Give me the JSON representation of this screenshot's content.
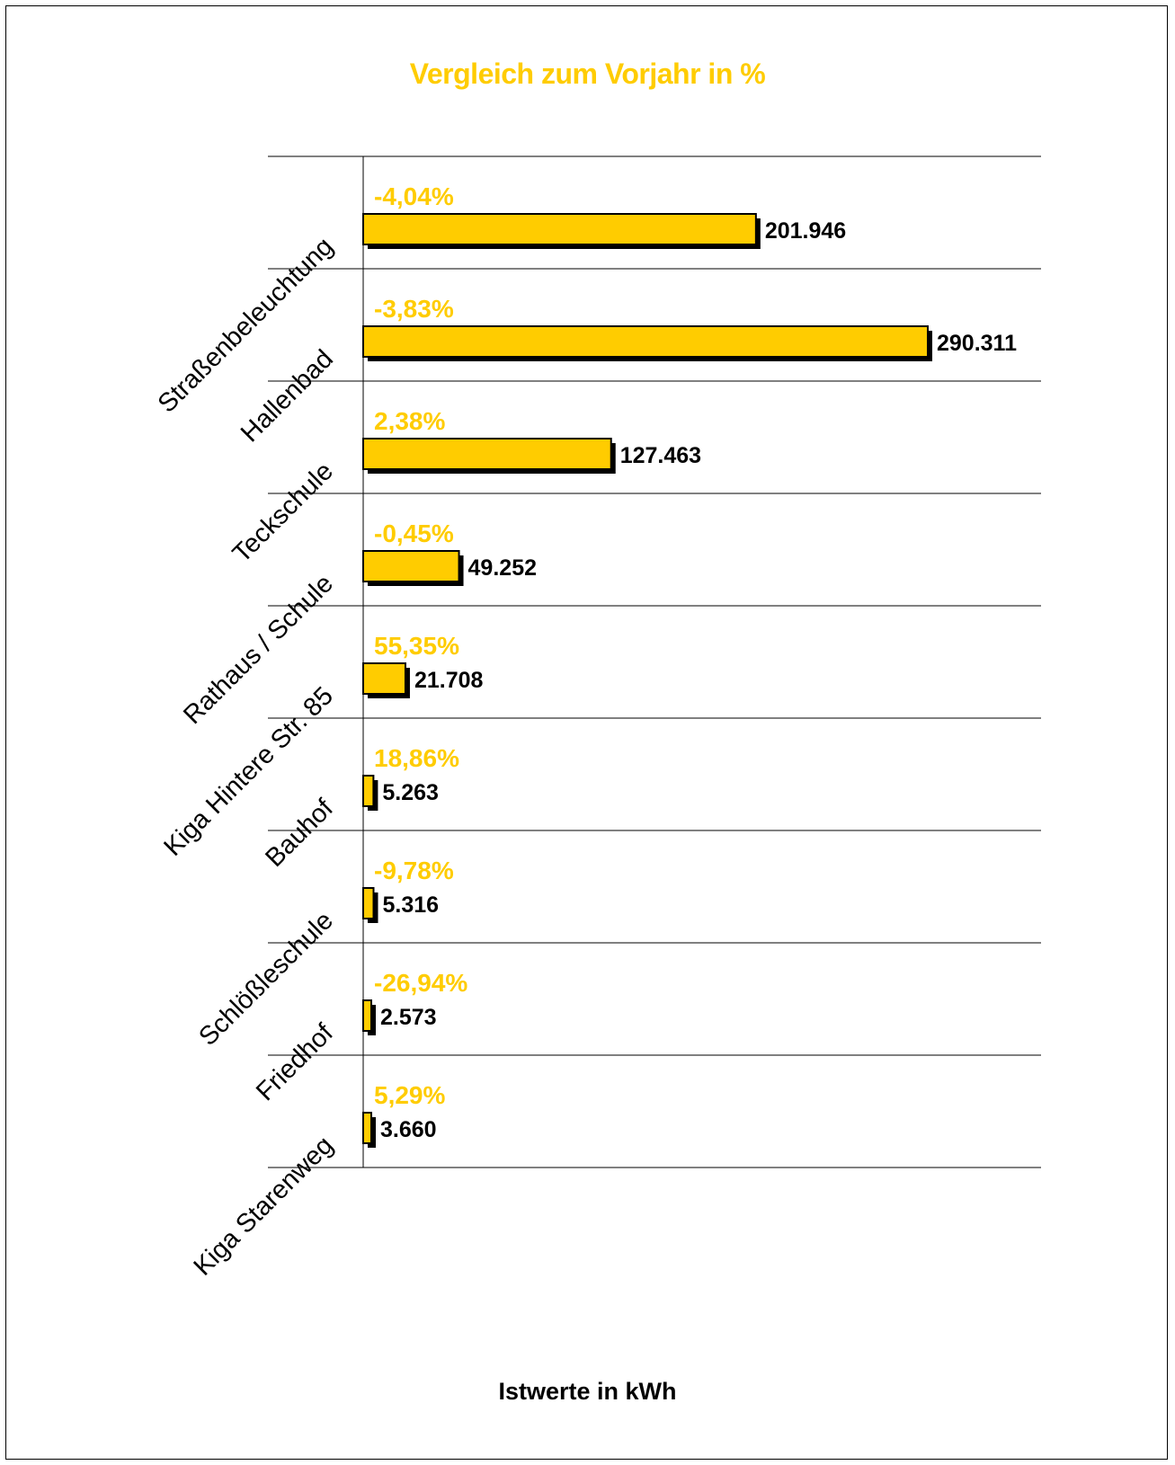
{
  "colors": {
    "bar": "#ffcc00",
    "bar_shadow": "#000000",
    "pct_label": "#ffcc00",
    "value_label": "#000000",
    "gridline": "#000000"
  },
  "chart_data": {
    "type": "bar",
    "orientation": "horizontal",
    "title": "Vergleich zum Vorjahr in %",
    "xlabel": "Istwerte in kWh",
    "ylabel": "",
    "xlim": [
      0,
      290311
    ],
    "grid": true,
    "categories": [
      "Straßenbeleuchtung",
      "Hallenbad",
      "Teckschule",
      "Rathaus / Schule",
      "Kiga Hintere Str. 85",
      "Bauhof",
      "Schlößleschule",
      "Friedhof",
      "Kiga Starenweg"
    ],
    "series": [
      {
        "values": [
          201946,
          290311,
          127463,
          49252,
          21708,
          5263,
          5316,
          2573,
          3660
        ],
        "labels": [
          "201.946",
          "290.311",
          "127.463",
          "49.252",
          "21.708",
          "5.263",
          "5.316",
          "2.573",
          "3.660"
        ]
      }
    ],
    "change_labels": [
      "-4,04%",
      "-3,83%",
      "2,38%",
      "-0,45%",
      "55,35%",
      "18,86%",
      "-9,78%",
      "-26,94%",
      "5,29%"
    ]
  }
}
